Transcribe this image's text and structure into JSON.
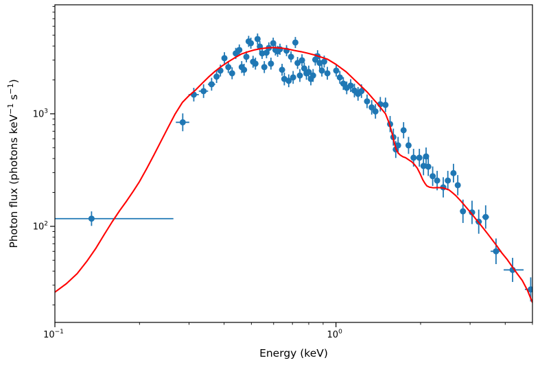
{
  "chart_data": {
    "type": "scatter",
    "title": "",
    "xlabel": "Energy (keV)",
    "ylabel": "Photon flux (photons keV−1 s−1)",
    "ylabel_segments": [
      [
        "Photon flux (photons keV",
        false
      ],
      [
        "−1",
        true
      ],
      [
        " s",
        false
      ],
      [
        "−1",
        true
      ],
      [
        ")",
        false
      ]
    ],
    "xscale": "log",
    "yscale": "log",
    "xlim": [
      0.1,
      5.0
    ],
    "ylim": [
      14,
      9300
    ],
    "grid": false,
    "legend": null,
    "x_major_ticks": [
      {
        "value": 0.1,
        "exponent": "−1"
      },
      {
        "value": 1.0,
        "exponent": "0"
      }
    ],
    "x_minor_ticks": [
      0.2,
      0.3,
      0.4,
      0.5,
      0.6,
      0.7,
      0.8,
      0.9,
      2,
      3,
      4,
      5
    ],
    "y_major_ticks": [
      {
        "value": 100,
        "exponent": "2"
      },
      {
        "value": 1000,
        "exponent": "3"
      }
    ],
    "y_minor_ticks": [
      20,
      30,
      40,
      50,
      60,
      70,
      80,
      90,
      200,
      300,
      400,
      500,
      600,
      700,
      800,
      900,
      2000,
      3000,
      4000,
      5000,
      6000,
      7000,
      8000,
      9000
    ],
    "series": [
      {
        "name": "observed-spectrum",
        "kind": "errorbar",
        "color": "#1f77b4",
        "marker": "circle",
        "marker_radius": 4.5,
        "points_format": [
          "energy_keV",
          "flux",
          "yerr_frac",
          "xerr_frac"
        ],
        "points": [
          [
            0.135,
            117,
            0.16,
            null
          ],
          [
            0.285,
            840,
            0.2,
            0.055
          ],
          [
            0.312,
            1480,
            0.15,
            0.042
          ],
          [
            0.338,
            1590,
            0.15,
            0.038
          ],
          [
            0.361,
            1830,
            0.14,
            0.03
          ],
          [
            0.376,
            2140,
            0.14,
            0.016
          ],
          [
            0.388,
            2420,
            0.13,
            0.016
          ],
          [
            0.401,
            3120,
            0.13,
            0.016
          ],
          [
            0.414,
            2600,
            0.13,
            0.016
          ],
          [
            0.427,
            2290,
            0.13,
            0.016
          ],
          [
            0.44,
            3440,
            0.12,
            0.015
          ],
          [
            0.453,
            3690,
            0.12,
            0.015
          ],
          [
            0.462,
            2600,
            0.13,
            0.012
          ],
          [
            0.471,
            2460,
            0.13,
            0.012
          ],
          [
            0.48,
            3210,
            0.12,
            0.012
          ],
          [
            0.489,
            4400,
            0.12,
            0.012
          ],
          [
            0.498,
            4240,
            0.12,
            0.012
          ],
          [
            0.507,
            2900,
            0.13,
            0.012
          ],
          [
            0.517,
            2790,
            0.13,
            0.012
          ],
          [
            0.526,
            4620,
            0.12,
            0.012
          ],
          [
            0.536,
            3960,
            0.12,
            0.012
          ],
          [
            0.546,
            3440,
            0.12,
            0.012
          ],
          [
            0.556,
            2600,
            0.13,
            0.012
          ],
          [
            0.566,
            3490,
            0.12,
            0.012
          ],
          [
            0.577,
            3850,
            0.12,
            0.012
          ],
          [
            0.587,
            2790,
            0.13,
            0.012
          ],
          [
            0.598,
            4240,
            0.12,
            0.012
          ],
          [
            0.609,
            3690,
            0.12,
            0.012
          ],
          [
            0.62,
            3590,
            0.12,
            0.012
          ],
          [
            0.632,
            3745,
            0.12,
            0.012
          ],
          [
            0.643,
            2460,
            0.13,
            0.012
          ],
          [
            0.655,
            2040,
            0.14,
            0.012
          ],
          [
            0.667,
            3640,
            0.12,
            0.012
          ],
          [
            0.679,
            1964,
            0.14,
            0.012
          ],
          [
            0.692,
            3210,
            0.12,
            0.012
          ],
          [
            0.704,
            2105,
            0.14,
            0.012
          ],
          [
            0.717,
            4300,
            0.12,
            0.012
          ],
          [
            0.73,
            2830,
            0.13,
            0.012
          ],
          [
            0.744,
            2190,
            0.14,
            0.012
          ],
          [
            0.757,
            2990,
            0.13,
            0.012
          ],
          [
            0.771,
            2530,
            0.13,
            0.012
          ],
          [
            0.785,
            2287,
            0.14,
            0.012
          ],
          [
            0.8,
            2350,
            0.14,
            0.012
          ],
          [
            0.814,
            2040,
            0.14,
            0.012
          ],
          [
            0.829,
            2190,
            0.14,
            0.012
          ],
          [
            0.844,
            3030,
            0.13,
            0.012
          ],
          [
            0.86,
            3250,
            0.13,
            0.012
          ],
          [
            0.875,
            2830,
            0.13,
            0.012
          ],
          [
            0.891,
            2420,
            0.13,
            0.012
          ],
          [
            0.908,
            2910,
            0.13,
            0.012
          ],
          [
            0.932,
            2290,
            0.14,
            0.014
          ],
          [
            1.002,
            2420,
            0.13,
            0.014
          ],
          [
            1.032,
            2105,
            0.14,
            0.014
          ],
          [
            1.062,
            1855,
            0.14,
            0.014
          ],
          [
            1.092,
            1700,
            0.14,
            0.014
          ],
          [
            1.128,
            1780,
            0.14,
            0.014
          ],
          [
            1.163,
            1610,
            0.15,
            0.014
          ],
          [
            1.198,
            1503,
            0.15,
            0.014
          ],
          [
            1.232,
            1590,
            0.15,
            0.014
          ],
          [
            1.29,
            1290,
            0.15,
            0.016
          ],
          [
            1.34,
            1140,
            0.16,
            0.016
          ],
          [
            1.382,
            1050,
            0.16,
            0.016
          ],
          [
            1.438,
            1216,
            0.16,
            0.016
          ],
          [
            1.5,
            1200,
            0.16,
            0.016
          ],
          [
            1.558,
            810,
            0.18,
            0.016
          ],
          [
            1.6,
            620,
            0.19,
            0.016
          ],
          [
            1.632,
            482,
            0.19,
            0.016
          ],
          [
            1.663,
            524,
            0.19,
            0.016
          ],
          [
            1.74,
            714,
            0.18,
            0.018
          ],
          [
            1.812,
            524,
            0.19,
            0.018
          ],
          [
            1.888,
            407,
            0.2,
            0.018
          ],
          [
            1.98,
            407,
            0.2,
            0.018
          ],
          [
            2.048,
            344,
            0.21,
            0.018
          ],
          [
            2.092,
            418,
            0.2,
            0.018
          ],
          [
            2.13,
            339,
            0.21,
            0.018
          ],
          [
            2.208,
            279,
            0.22,
            0.02
          ],
          [
            2.29,
            255,
            0.22,
            0.02
          ],
          [
            2.408,
            222,
            0.23,
            0.02
          ],
          [
            2.5,
            255,
            0.22,
            0.022
          ],
          [
            2.618,
            297,
            0.21,
            0.022
          ],
          [
            2.712,
            232,
            0.23,
            0.022
          ],
          [
            2.83,
            136,
            0.27,
            0.024
          ],
          [
            3.048,
            133,
            0.27,
            0.026
          ],
          [
            3.22,
            110,
            0.28,
            0.026
          ],
          [
            3.408,
            121,
            0.27,
            0.028
          ],
          [
            3.71,
            60,
            0.3,
            null
          ],
          [
            4.25,
            41,
            0.28,
            null
          ],
          [
            4.93,
            27.5,
            0.28,
            null
          ]
        ],
        "explicit_xbars": {
          "0": [
            0.1,
            0.264
          ],
          "85": [
            3.55,
            3.88
          ],
          "86": [
            3.95,
            4.65
          ],
          "87": [
            4.7,
            5.2
          ]
        }
      },
      {
        "name": "model-fit",
        "kind": "line",
        "color": "#ff0000",
        "width": 2.1,
        "points": [
          [
            0.1,
            26
          ],
          [
            0.11,
            31
          ],
          [
            0.12,
            38
          ],
          [
            0.13,
            49
          ],
          [
            0.14,
            64
          ],
          [
            0.15,
            85
          ],
          [
            0.16,
            110
          ],
          [
            0.17,
            138
          ],
          [
            0.18,
            168
          ],
          [
            0.19,
            205
          ],
          [
            0.2,
            250
          ],
          [
            0.212,
            325
          ],
          [
            0.225,
            430
          ],
          [
            0.238,
            565
          ],
          [
            0.253,
            760
          ],
          [
            0.268,
            1000
          ],
          [
            0.284,
            1260
          ],
          [
            0.3,
            1450
          ],
          [
            0.316,
            1620
          ],
          [
            0.333,
            1850
          ],
          [
            0.352,
            2120
          ],
          [
            0.371,
            2380
          ],
          [
            0.392,
            2650
          ],
          [
            0.414,
            2900
          ],
          [
            0.437,
            3150
          ],
          [
            0.461,
            3400
          ],
          [
            0.487,
            3560
          ],
          [
            0.514,
            3700
          ],
          [
            0.543,
            3800
          ],
          [
            0.573,
            3860
          ],
          [
            0.605,
            3880
          ],
          [
            0.639,
            3840
          ],
          [
            0.674,
            3760
          ],
          [
            0.712,
            3650
          ],
          [
            0.752,
            3560
          ],
          [
            0.794,
            3450
          ],
          [
            0.838,
            3330
          ],
          [
            0.885,
            3190
          ],
          [
            0.934,
            3050
          ],
          [
            1.0,
            2750
          ],
          [
            1.088,
            2355
          ],
          [
            1.181,
            1935
          ],
          [
            1.288,
            1570
          ],
          [
            1.401,
            1235
          ],
          [
            1.5,
            1000
          ],
          [
            1.545,
            830
          ],
          [
            1.585,
            665
          ],
          [
            1.61,
            560
          ],
          [
            1.637,
            482
          ],
          [
            1.665,
            448
          ],
          [
            1.692,
            430
          ],
          [
            1.73,
            415
          ],
          [
            1.768,
            407
          ],
          [
            1.815,
            390
          ],
          [
            1.862,
            374
          ],
          [
            1.9,
            355
          ],
          [
            1.945,
            330
          ],
          [
            1.99,
            295
          ],
          [
            2.035,
            260
          ],
          [
            2.07,
            242
          ],
          [
            2.104,
            229
          ],
          [
            2.15,
            223
          ],
          [
            2.219,
            220
          ],
          [
            2.3,
            221
          ],
          [
            2.385,
            220
          ],
          [
            2.45,
            216
          ],
          [
            2.521,
            211
          ],
          [
            2.59,
            200
          ],
          [
            2.665,
            188
          ],
          [
            2.78,
            168
          ],
          [
            2.902,
            148
          ],
          [
            3.025,
            131
          ],
          [
            3.154,
            115
          ],
          [
            3.29,
            101
          ],
          [
            3.437,
            88
          ],
          [
            3.58,
            77
          ],
          [
            3.735,
            67
          ],
          [
            3.89,
            58
          ],
          [
            4.059,
            51
          ],
          [
            4.23,
            44
          ],
          [
            4.411,
            38
          ],
          [
            4.6,
            33
          ],
          [
            4.8,
            27
          ],
          [
            5.0,
            21
          ]
        ]
      }
    ]
  }
}
